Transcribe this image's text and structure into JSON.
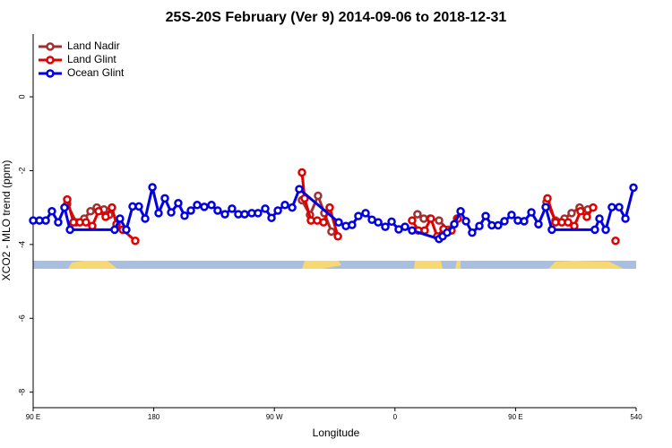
{
  "chart_data": {
    "type": "line",
    "title": "25S-20S February (Ver 9)   2014-09-06 to 2018-12-31",
    "xlabel": "Longitude",
    "ylabel": "XCO2 - MLO trend (ppm)",
    "xlim": [
      90,
      540
    ],
    "ylim": [
      -8.42,
      1.7
    ],
    "xticks": [
      {
        "value": 90,
        "label": "90 E"
      },
      180,
      {
        "value": 270,
        "label": "90 W"
      },
      {
        "value": 360,
        "label": "0"
      },
      {
        "value": 450,
        "label": "90 E"
      },
      540
    ],
    "yticks": [
      0,
      -2,
      -4,
      -6,
      -8
    ],
    "legend": "top-left",
    "series": [
      {
        "name": "Land Nadir",
        "color": "#a03030",
        "x": [
          115.4,
          122.1,
          128.1,
          132.8,
          137.5,
          142.8,
          146.8,
          null,
          290.6,
          296.6,
          302.6,
          307.3,
          312.6,
          null,
          376.8,
          381.5,
          386.2,
          392.9,
          399.6,
          406.3,
          null,
          473.1,
          479.8,
          486.5,
          491.8,
          497.8,
          503.9
        ],
        "values": [
          -2.9,
          -3.4,
          -3.3,
          -3.1,
          -3.0,
          -3.05,
          -3.2,
          null,
          -2.8,
          -3.2,
          -2.68,
          -3.15,
          -3.65,
          null,
          -3.18,
          -3.3,
          -3.3,
          -3.35,
          -3.6,
          -3.3,
          null,
          -2.85,
          -3.35,
          -3.3,
          -3.15,
          -3.0,
          -3.05
        ]
      },
      {
        "name": "Land Glint",
        "color": "#e00000",
        "x": [
          115.4,
          120.1,
          124.8,
          129.4,
          134.1,
          138.8,
          144.1,
          148.8,
          152.2,
          156.8,
          166.2,
          null,
          290.6,
          292.6,
          297.3,
          302,
          306.7,
          311.3,
          317.4,
          null,
          372.8,
          377.5,
          382.2,
          386.8,
          391.5,
          396.2,
          402.2,
          406.9,
          null,
          473.8,
          479.8,
          484.5,
          489.2,
          493.8,
          498.5,
          503.2,
          507.9,
          null,
          524.6
        ],
        "values": [
          -2.78,
          -3.4,
          -3.4,
          -3.4,
          -3.5,
          -3.1,
          -3.25,
          -3.0,
          -3.45,
          -3.6,
          -3.9,
          null,
          -2.05,
          -2.75,
          -3.35,
          -3.35,
          -3.4,
          -3.0,
          -3.78,
          null,
          -3.35,
          -3.62,
          -3.62,
          -3.3,
          -3.78,
          -3.58,
          -3.62,
          -3.3,
          null,
          -2.75,
          -3.4,
          -3.4,
          -3.4,
          -3.5,
          -3.1,
          -3.25,
          -3.0,
          null,
          -3.9
        ]
      },
      {
        "name": "Ocean Glint",
        "color": "#0000e0",
        "x": [
          90,
          94.7,
          99.4,
          104,
          108.7,
          113.4,
          117.5,
          150.8,
          154.8,
          159.5,
          164.2,
          168.9,
          173.6,
          179,
          183.6,
          188.3,
          193,
          198.3,
          203,
          207.7,
          212.4,
          217.7,
          223.1,
          227.7,
          233.1,
          238.4,
          243.1,
          247.8,
          253.1,
          257.8,
          263.2,
          267.9,
          272.6,
          277.9,
          283.3,
          288.6,
          318,
          323.4,
          328,
          332.7,
          338.1,
          342.8,
          347.5,
          352.8,
          357.5,
          362.8,
          367.5,
          372.8,
          392.9,
          395.6,
          398.9,
          404.3,
          409,
          413,
          417.6,
          423,
          427.7,
          432.3,
          437,
          441.7,
          447,
          451.7,
          456.4,
          461.8,
          467.1,
          472.5,
          477.1,
          509.2,
          512.6,
          517.3,
          521.9,
          527.3,
          532,
          538
        ],
        "values": [
          -3.35,
          -3.35,
          -3.35,
          -3.1,
          -3.4,
          -3.0,
          -3.6,
          -3.6,
          -3.3,
          -3.6,
          -2.97,
          -2.97,
          -3.3,
          -2.45,
          -3.15,
          -2.75,
          -3.13,
          -2.88,
          -3.22,
          -3.08,
          -2.93,
          -2.98,
          -2.93,
          -3.08,
          -3.18,
          -3.03,
          -3.18,
          -3.18,
          -3.15,
          -3.15,
          -3.03,
          -3.28,
          -3.08,
          -2.93,
          -3.0,
          -2.5,
          -3.4,
          -3.5,
          -3.47,
          -3.23,
          -3.15,
          -3.33,
          -3.4,
          -3.52,
          -3.38,
          -3.59,
          -3.52,
          -3.62,
          -3.85,
          -3.78,
          -3.68,
          -3.45,
          -3.1,
          -3.37,
          -3.68,
          -3.5,
          -3.23,
          -3.48,
          -3.48,
          -3.37,
          -3.2,
          -3.35,
          -3.37,
          -3.13,
          -3.45,
          -2.99,
          -3.6,
          -3.6,
          -3.3,
          -3.6,
          -2.99,
          -2.99,
          -3.3,
          -2.46
        ]
      }
    ]
  }
}
